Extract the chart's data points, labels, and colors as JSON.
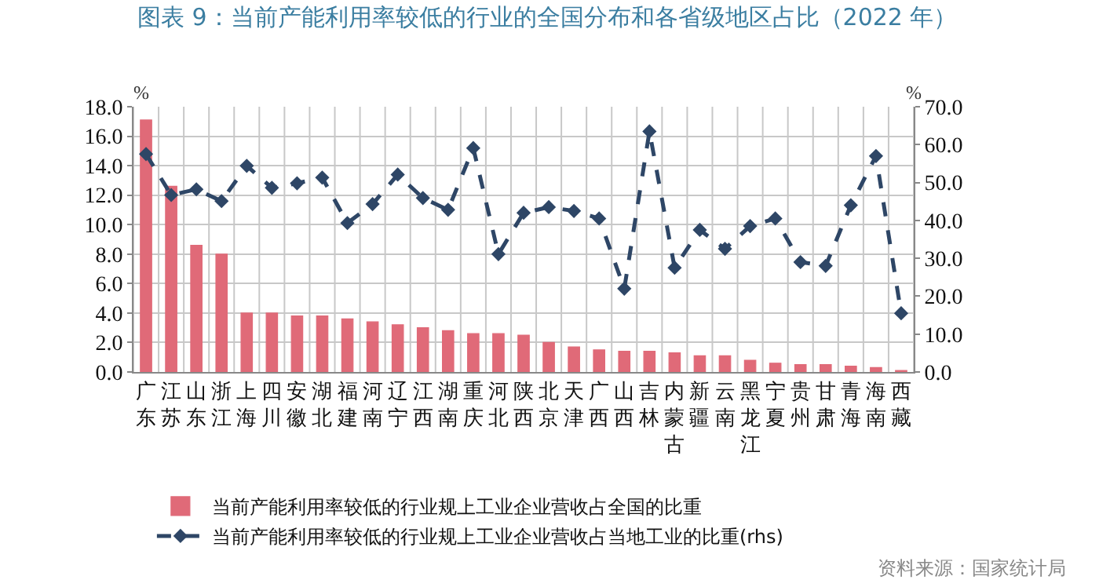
{
  "chart_data": {
    "type": "bar",
    "title": "图表 9：当前产能利用率较低的行业的全国分布和各省级地区占比（2022 年）",
    "ylabel": "%",
    "y2label": "%",
    "categories": [
      "广东",
      "江苏",
      "山东",
      "浙江",
      "上海",
      "四川",
      "安徽",
      "湖北",
      "福建",
      "河南",
      "辽宁",
      "江西",
      "湖南",
      "重庆",
      "河北",
      "陕西",
      "北京",
      "天津",
      "广西",
      "山西",
      "吉林",
      "内蒙古",
      "新疆",
      "云南",
      "黑龙江",
      "宁夏",
      "贵州",
      "甘肃",
      "青海",
      "海南",
      "西藏"
    ],
    "series": [
      {
        "name": "当前产能利用率较低的行业规上工业企业营收占全国的比重",
        "color": "#e06a78",
        "values": [
          17.1,
          12.6,
          8.6,
          8.0,
          4.0,
          4.0,
          3.8,
          3.8,
          3.6,
          3.4,
          3.2,
          3.0,
          2.8,
          2.6,
          2.6,
          2.5,
          2.0,
          1.7,
          1.5,
          1.4,
          1.4,
          1.3,
          1.1,
          1.1,
          0.8,
          0.6,
          0.5,
          0.5,
          0.4,
          0.3,
          0.1
        ]
      },
      {
        "name": "当前产能利用率较低的行业规上工业企业营收占当地工业的比重(rhs)",
        "type": "line",
        "axis": "y2",
        "color": "#2e4666",
        "line_style": "dashed",
        "marker": "diamond",
        "values": [
          57.5,
          46.7,
          48.2,
          45.1,
          54.4,
          48.6,
          49.8,
          51.3,
          39.3,
          44.3,
          52.1,
          45.9,
          42.8,
          59.1,
          31.1,
          42,
          43.5,
          42.5,
          40.5,
          22,
          63.5,
          27.5,
          37.5,
          32.5,
          38.5,
          40.5,
          29,
          28,
          44,
          57,
          15.5
        ]
      }
    ],
    "ylim": [
      0,
      18
    ],
    "yticks": [
      {
        "value": 0,
        "label": "0.0"
      },
      {
        "value": 2,
        "label": "2.0"
      },
      {
        "value": 4,
        "label": "4.0"
      },
      {
        "value": 6,
        "label": "6.0"
      },
      {
        "value": 8,
        "label": "8.0"
      },
      {
        "value": 10,
        "label": "10.0"
      },
      {
        "value": 12,
        "label": "12.0"
      },
      {
        "value": 14,
        "label": "14.0"
      },
      {
        "value": 16,
        "label": "16.0"
      },
      {
        "value": 18,
        "label": "18.0"
      }
    ],
    "y2lim": [
      0,
      70
    ],
    "y2ticks": [
      {
        "value": 0,
        "label": "0.0"
      },
      {
        "value": 10,
        "label": "10.0"
      },
      {
        "value": 20,
        "label": "20.0"
      },
      {
        "value": 30,
        "label": "30.0"
      },
      {
        "value": 40,
        "label": "40.0"
      },
      {
        "value": 50,
        "label": "50.0"
      },
      {
        "value": 60,
        "label": "60.0"
      },
      {
        "value": 70,
        "label": "70.0"
      }
    ],
    "grid": true,
    "legend": "bottom",
    "annotations": [
      "资料来源：国家统计局"
    ]
  }
}
